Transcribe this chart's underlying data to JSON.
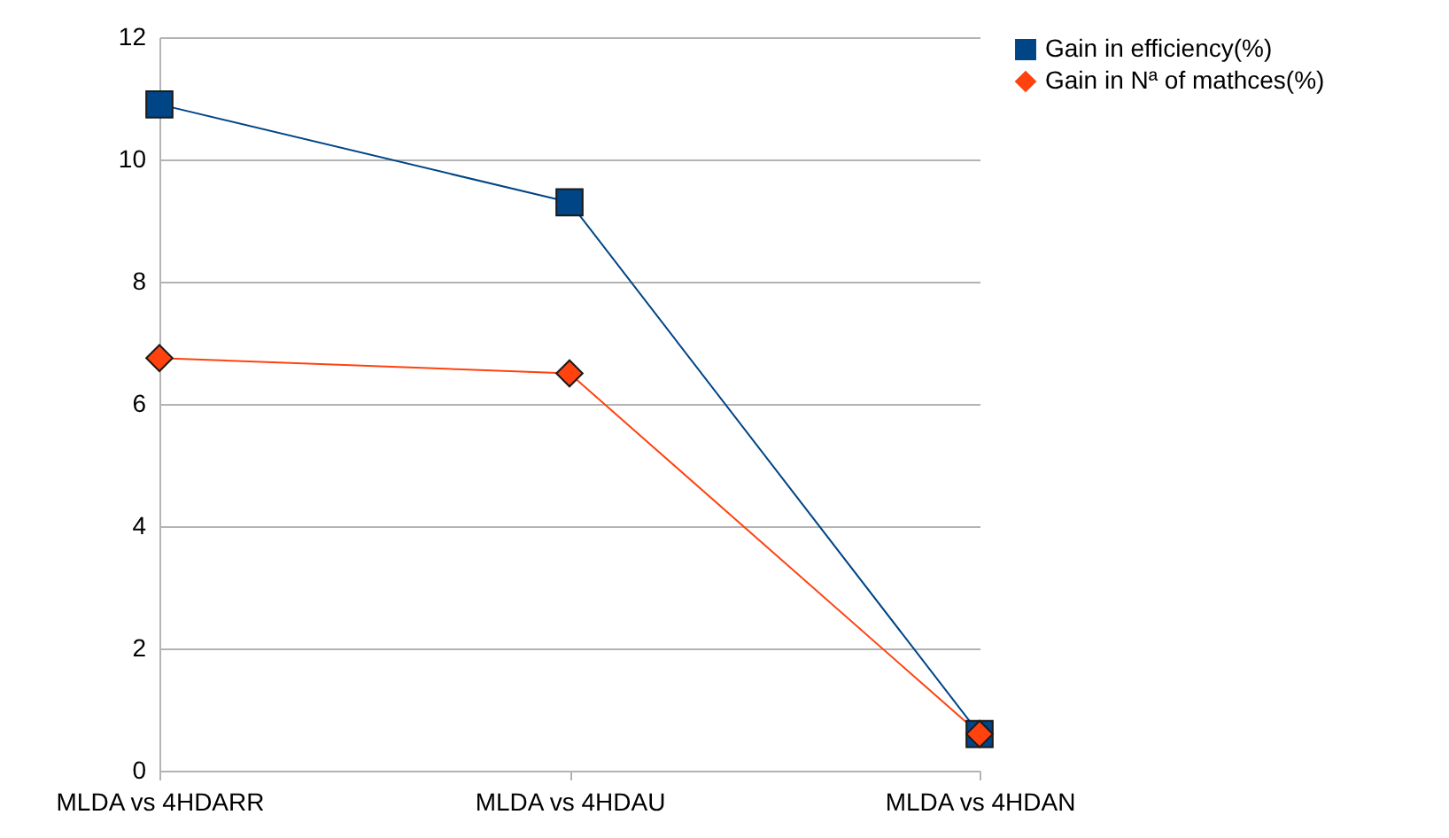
{
  "chart_data": {
    "type": "line",
    "categories": [
      "MLDA vs 4HDARR",
      "MLDA vs 4HDAU",
      "MLDA vs 4HDAN"
    ],
    "series": [
      {
        "name": "Gain in efficiency(%)",
        "color": "#004586",
        "marker": "square",
        "values": [
          10.9,
          9.3,
          0.6
        ]
      },
      {
        "name": "Gain in Nª of mathces(%)",
        "color": "#ff420e",
        "marker": "diamond",
        "values": [
          6.75,
          6.5,
          0.6
        ]
      }
    ],
    "ylim": [
      0,
      12
    ],
    "yticks": [
      0,
      2,
      4,
      6,
      8,
      10,
      12
    ],
    "grid": "y",
    "legend": "right"
  }
}
